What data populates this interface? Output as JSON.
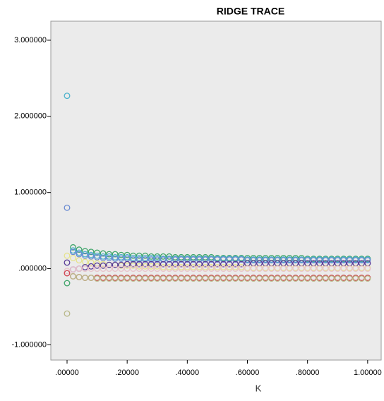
{
  "chart_data": {
    "type": "scatter",
    "title": "RIDGE TRACE",
    "x_label": "K",
    "x": [
      0,
      0.02,
      0.04,
      0.06,
      0.08,
      0.1,
      0.12,
      0.14,
      0.16,
      0.18,
      0.2,
      0.22,
      0.24,
      0.26,
      0.28,
      0.3,
      0.32,
      0.34,
      0.36,
      0.38,
      0.4,
      0.42,
      0.44,
      0.46,
      0.48,
      0.5,
      0.52,
      0.54,
      0.56,
      0.58,
      0.6,
      0.62,
      0.64,
      0.66,
      0.68,
      0.7,
      0.72,
      0.74,
      0.76,
      0.78,
      0.8,
      0.82,
      0.84,
      0.86,
      0.88,
      0.9,
      0.92,
      0.94,
      0.96,
      0.98,
      1
    ],
    "series": [
      {
        "color": "#3fa56a",
        "values": [
          -0.19,
          0.28,
          0.25,
          0.23,
          0.22,
          0.21,
          0.2,
          0.19,
          0.19,
          0.18,
          0.18,
          0.17,
          0.17,
          0.17,
          0.16,
          0.16,
          0.16,
          0.16,
          0.15,
          0.15,
          0.15,
          0.15,
          0.15,
          0.15,
          0.15,
          0.14,
          0.14,
          0.14,
          0.14,
          0.14,
          0.14,
          0.14,
          0.14,
          0.14,
          0.14,
          0.14,
          0.14,
          0.14,
          0.14,
          0.14,
          0.13,
          0.13,
          0.13,
          0.13,
          0.13,
          0.13,
          0.13,
          0.13,
          0.13,
          0.13,
          0.13
        ]
      },
      {
        "color": "#4fb3cc",
        "values": [
          2.27,
          0.24,
          0.21,
          0.19,
          0.18,
          0.17,
          0.16,
          0.16,
          0.15,
          0.15,
          0.15,
          0.14,
          0.14,
          0.14,
          0.14,
          0.14,
          0.13,
          0.13,
          0.13,
          0.13,
          0.13,
          0.13,
          0.13,
          0.13,
          0.13,
          0.13,
          0.13,
          0.13,
          0.13,
          0.13,
          0.12,
          0.12,
          0.12,
          0.12,
          0.12,
          0.12,
          0.12,
          0.12,
          0.12,
          0.12,
          0.12,
          0.12,
          0.12,
          0.12,
          0.12,
          0.12,
          0.12,
          0.12,
          0.12,
          0.12,
          0.12
        ]
      },
      {
        "color": "#6a8bd2",
        "values": [
          0.8,
          0.22,
          0.19,
          0.17,
          0.16,
          0.15,
          0.14,
          0.14,
          0.13,
          0.13,
          0.13,
          0.12,
          0.12,
          0.12,
          0.12,
          0.12,
          0.12,
          0.12,
          0.12,
          0.12,
          0.12,
          0.12,
          0.12,
          0.12,
          0.12,
          0.12,
          0.12,
          0.12,
          0.12,
          0.12,
          0.11,
          0.11,
          0.11,
          0.11,
          0.11,
          0.11,
          0.11,
          0.11,
          0.11,
          0.11,
          0.11,
          0.11,
          0.11,
          0.11,
          0.11,
          0.11,
          0.11,
          0.11,
          0.11,
          0.11,
          0.11
        ]
      },
      {
        "color": "#e6e38c",
        "values": [
          0.17,
          0.14,
          0.11,
          0.09,
          0.08,
          0.07,
          0.06,
          0.05,
          0.05,
          0.04,
          0.04,
          0.04,
          0.03,
          0.03,
          0.03,
          0.03,
          0.02,
          0.02,
          0.02,
          0.02,
          0.02,
          0.02,
          0.02,
          0.02,
          0.02,
          0.02,
          0.02,
          0.02,
          0.02,
          0.02,
          0.01,
          0.01,
          0.01,
          0.01,
          0.01,
          0.01,
          0.01,
          0.01,
          0.01,
          0.01,
          0.01,
          0.01,
          0.01,
          0.01,
          0.01,
          0.01,
          0.01,
          0.01,
          0.01,
          0.01,
          0.01
        ]
      },
      {
        "color": "#5a3c98",
        "values": [
          0.08,
          -0.01,
          0,
          0.02,
          0.03,
          0.04,
          0.04,
          0.05,
          0.05,
          0.05,
          0.06,
          0.06,
          0.06,
          0.06,
          0.06,
          0.06,
          0.06,
          0.06,
          0.06,
          0.06,
          0.06,
          0.06,
          0.06,
          0.06,
          0.06,
          0.06,
          0.06,
          0.06,
          0.06,
          0.06,
          0.07,
          0.07,
          0.07,
          0.07,
          0.07,
          0.07,
          0.07,
          0.07,
          0.07,
          0.07,
          0.07,
          0.07,
          0.07,
          0.07,
          0.07,
          0.07,
          0.07,
          0.07,
          0.07,
          0.07,
          0.07
        ]
      },
      {
        "color": "#e9c3cb",
        "values": [
          -0.03,
          -0.01,
          0,
          0,
          0,
          0,
          0,
          0,
          0,
          0,
          0,
          0,
          0,
          0,
          0,
          0,
          0,
          0,
          0,
          0,
          0,
          0,
          0,
          0,
          0,
          0,
          0,
          0,
          0,
          0,
          0,
          0,
          0,
          0,
          0,
          0,
          0,
          0,
          0,
          0,
          0,
          0,
          0,
          0,
          0,
          0,
          0,
          0,
          0,
          0,
          0
        ]
      },
      {
        "color": "#d0404e",
        "values": [
          -0.06,
          -0.1,
          -0.11,
          -0.12,
          -0.12,
          -0.12,
          -0.12,
          -0.12,
          -0.12,
          -0.12,
          -0.12,
          -0.12,
          -0.12,
          -0.12,
          -0.12,
          -0.12,
          -0.12,
          -0.12,
          -0.12,
          -0.12,
          -0.12,
          -0.12,
          -0.12,
          -0.12,
          -0.12,
          -0.12,
          -0.12,
          -0.12,
          -0.12,
          -0.12,
          -0.12,
          -0.12,
          -0.12,
          -0.12,
          -0.12,
          -0.12,
          -0.12,
          -0.12,
          -0.12,
          -0.12,
          -0.12,
          -0.12,
          -0.12,
          -0.12,
          -0.12,
          -0.12,
          -0.12,
          -0.12,
          -0.12,
          -0.12,
          -0.12
        ]
      },
      {
        "color": "#b9b98a",
        "values": [
          -0.59,
          -0.1,
          -0.11,
          -0.12,
          -0.12,
          -0.13,
          -0.13,
          -0.13,
          -0.13,
          -0.13,
          -0.13,
          -0.13,
          -0.13,
          -0.13,
          -0.13,
          -0.13,
          -0.13,
          -0.13,
          -0.13,
          -0.13,
          -0.13,
          -0.13,
          -0.13,
          -0.13,
          -0.13,
          -0.13,
          -0.13,
          -0.13,
          -0.13,
          -0.13,
          -0.13,
          -0.13,
          -0.13,
          -0.13,
          -0.13,
          -0.13,
          -0.13,
          -0.13,
          -0.13,
          -0.13,
          -0.13,
          -0.13,
          -0.13,
          -0.13,
          -0.13,
          -0.13,
          -0.13,
          -0.13,
          -0.13,
          -0.13,
          -0.13
        ]
      }
    ],
    "xlim": [
      -0.054,
      1.045
    ],
    "ylim": [
      -1.2,
      3.25
    ],
    "xticks": [
      {
        "value": 0,
        "label": ".00000"
      },
      {
        "value": 0.2,
        "label": ".20000"
      },
      {
        "value": 0.4,
        "label": ".40000"
      },
      {
        "value": 0.6,
        "label": ".60000"
      },
      {
        "value": 0.8,
        "label": ".80000"
      },
      {
        "value": 1,
        "label": "1.00000"
      }
    ],
    "yticks": [
      {
        "value": -1,
        "label": "-1.000000"
      },
      {
        "value": 0,
        "label": ".000000"
      },
      {
        "value": 1,
        "label": "1.000000"
      },
      {
        "value": 2,
        "label": "2.000000"
      },
      {
        "value": 3,
        "label": "3.000000"
      }
    ],
    "background": "#ebebeb"
  }
}
